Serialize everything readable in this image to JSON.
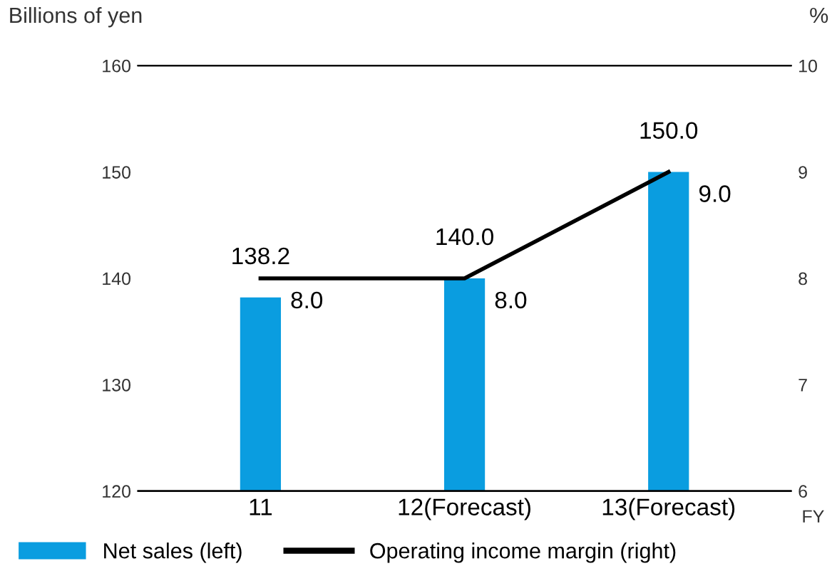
{
  "chart_data": {
    "type": "bar",
    "ylabel": "Billions of yen",
    "y2label": "%",
    "xlabel": "FY",
    "categories": [
      "11",
      "12(Forecast)",
      "13(Forecast)"
    ],
    "series": [
      {
        "name": "Net sales (left)",
        "color": "#0a9de0",
        "values": [
          138.2,
          140.0,
          150.0
        ],
        "value_labels": [
          "138.2",
          "140.0",
          "150.0"
        ]
      },
      {
        "name": "Operating income margin (right)",
        "type": "line",
        "axis": "y2",
        "color": "#000000",
        "values": [
          8.0,
          8.0,
          9.0
        ],
        "value_labels": [
          "8.0",
          "8.0",
          "9.0"
        ]
      }
    ],
    "ylim": [
      120,
      160
    ],
    "yticks": [
      120,
      130,
      140,
      150,
      160
    ],
    "y2lim": [
      6,
      10
    ],
    "y2ticks": [
      6,
      7,
      8,
      9,
      10
    ],
    "grid": false,
    "legend": "bottom left",
    "marker": "none",
    "line_style": "solid"
  }
}
